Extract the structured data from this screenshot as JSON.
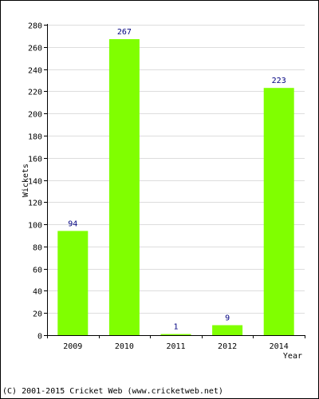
{
  "chart_data": {
    "type": "bar",
    "categories": [
      "2009",
      "2010",
      "2011",
      "2012",
      "2014"
    ],
    "values": [
      94,
      267,
      1,
      9,
      223
    ],
    "data_labels": [
      "94",
      "267",
      "1",
      "9",
      "223"
    ],
    "title": "",
    "xlabel": "Year",
    "ylabel": "Wickets",
    "ylim": [
      0,
      280
    ],
    "yticks": [
      0,
      20,
      40,
      60,
      80,
      100,
      120,
      140,
      160,
      180,
      200,
      220,
      240,
      260,
      280
    ],
    "grid": true,
    "legend": "none",
    "colors": {
      "bar": "#80ff00",
      "bar_border": "#5fc000",
      "data_label": "#000080",
      "grid": "#dddddd",
      "axis": "#000000"
    }
  },
  "footer": {
    "copyright": "(C) 2001-2015 Cricket Web (www.cricketweb.net)"
  }
}
